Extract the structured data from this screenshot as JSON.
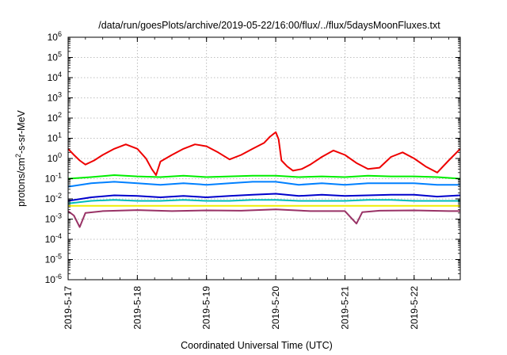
{
  "chart_data": {
    "type": "line",
    "title": "/data/run/goesPlots/archive/2019-05-22/16:00/flux/../flux/5daysMoonFluxes.txt",
    "xlabel": "Coordinated Universal Time (UTC)",
    "ylabel": {
      "base": "protons/cm",
      "sup": "2",
      "rest": "-s-sr-MeV"
    },
    "y_scale": "log",
    "ylim": [
      1e-06,
      1000000.0
    ],
    "xlim": [
      "2019-05-17T00:00",
      "2019-05-22T16:00"
    ],
    "grid": true,
    "y_ticks": [
      {
        "value": 1000000.0,
        "mant": "10",
        "exp": "6"
      },
      {
        "value": 100000.0,
        "mant": "10",
        "exp": "5"
      },
      {
        "value": 10000.0,
        "mant": "10",
        "exp": "4"
      },
      {
        "value": 1000.0,
        "mant": "10",
        "exp": "3"
      },
      {
        "value": 100.0,
        "mant": "10",
        "exp": "2"
      },
      {
        "value": 10.0,
        "mant": "10",
        "exp": "1"
      },
      {
        "value": 1.0,
        "mant": "10",
        "exp": "0"
      },
      {
        "value": 0.1,
        "mant": "10",
        "exp": "-1"
      },
      {
        "value": 0.01,
        "mant": "10",
        "exp": "-2"
      },
      {
        "value": 0.001,
        "mant": "10",
        "exp": "-3"
      },
      {
        "value": 0.0001,
        "mant": "10",
        "exp": "-4"
      },
      {
        "value": 1e-05,
        "mant": "10",
        "exp": "-5"
      },
      {
        "value": 1e-06,
        "mant": "10",
        "exp": "-6"
      }
    ],
    "x_ticks": [
      {
        "value": "2019-05-17T00:00",
        "label": "2019-5-17"
      },
      {
        "value": "2019-05-18T00:00",
        "label": "2019-5-18"
      },
      {
        "value": "2019-05-19T00:00",
        "label": "2019-5-19"
      },
      {
        "value": "2019-05-20T00:00",
        "label": "2019-5-20"
      },
      {
        "value": "2019-05-21T00:00",
        "label": "2019-5-21"
      },
      {
        "value": "2019-05-22T00:00",
        "label": "2019-5-22"
      }
    ],
    "series": [
      {
        "color": "#ee0000",
        "x": [
          "2019-05-17T00:00",
          "2019-05-17T02:00",
          "2019-05-17T04:00",
          "2019-05-17T06:00",
          "2019-05-17T09:00",
          "2019-05-17T12:00",
          "2019-05-17T16:00",
          "2019-05-17T20:00",
          "2019-05-18T00:00",
          "2019-05-18T03:00",
          "2019-05-18T05:00",
          "2019-05-18T06:30",
          "2019-05-18T08:00",
          "2019-05-18T12:00",
          "2019-05-18T16:00",
          "2019-05-18T20:00",
          "2019-05-19T00:00",
          "2019-05-19T04:00",
          "2019-05-19T08:00",
          "2019-05-19T12:00",
          "2019-05-19T16:00",
          "2019-05-19T20:00",
          "2019-05-19T22:00",
          "2019-05-20T00:00",
          "2019-05-20T01:00",
          "2019-05-20T02:00",
          "2019-05-20T04:00",
          "2019-05-20T06:00",
          "2019-05-20T09:00",
          "2019-05-20T12:00",
          "2019-05-20T16:00",
          "2019-05-20T20:00",
          "2019-05-21T00:00",
          "2019-05-21T04:00",
          "2019-05-21T08:00",
          "2019-05-21T12:00",
          "2019-05-21T16:00",
          "2019-05-21T20:00",
          "2019-05-22T00:00",
          "2019-05-22T04:00",
          "2019-05-22T08:00",
          "2019-05-22T12:00",
          "2019-05-22T16:00"
        ],
        "y": [
          3,
          1.5,
          0.8,
          0.5,
          0.8,
          1.5,
          3,
          5,
          3,
          1,
          0.3,
          0.15,
          0.7,
          1.5,
          3,
          5,
          4,
          2,
          0.9,
          1.5,
          3,
          6,
          12,
          20,
          9,
          0.8,
          0.4,
          0.25,
          0.3,
          0.5,
          1.2,
          2.5,
          1.5,
          0.6,
          0.3,
          0.35,
          1.2,
          2,
          1,
          0.4,
          0.2,
          0.8,
          3
        ]
      },
      {
        "color": "#00ee00",
        "x": [
          "2019-05-17T00:00",
          "2019-05-17T08:00",
          "2019-05-17T16:00",
          "2019-05-18T00:00",
          "2019-05-18T08:00",
          "2019-05-18T16:00",
          "2019-05-19T00:00",
          "2019-05-19T08:00",
          "2019-05-19T16:00",
          "2019-05-20T00:00",
          "2019-05-20T08:00",
          "2019-05-20T16:00",
          "2019-05-21T00:00",
          "2019-05-21T08:00",
          "2019-05-21T16:00",
          "2019-05-22T00:00",
          "2019-05-22T08:00",
          "2019-05-22T16:00"
        ],
        "y": [
          0.1,
          0.12,
          0.15,
          0.13,
          0.12,
          0.14,
          0.12,
          0.13,
          0.14,
          0.14,
          0.12,
          0.13,
          0.12,
          0.14,
          0.13,
          0.13,
          0.12,
          0.1
        ]
      },
      {
        "color": "#0080ff",
        "x": [
          "2019-05-17T00:00",
          "2019-05-17T08:00",
          "2019-05-17T16:00",
          "2019-05-18T00:00",
          "2019-05-18T08:00",
          "2019-05-18T16:00",
          "2019-05-19T00:00",
          "2019-05-19T08:00",
          "2019-05-19T16:00",
          "2019-05-20T00:00",
          "2019-05-20T08:00",
          "2019-05-20T16:00",
          "2019-05-21T00:00",
          "2019-05-21T08:00",
          "2019-05-21T16:00",
          "2019-05-22T00:00",
          "2019-05-22T08:00",
          "2019-05-22T16:00"
        ],
        "y": [
          0.04,
          0.06,
          0.07,
          0.06,
          0.05,
          0.06,
          0.05,
          0.06,
          0.07,
          0.07,
          0.05,
          0.06,
          0.05,
          0.06,
          0.06,
          0.06,
          0.05,
          0.05
        ]
      },
      {
        "color": "#0000cc",
        "x": [
          "2019-05-17T00:00",
          "2019-05-17T08:00",
          "2019-05-17T16:00",
          "2019-05-18T00:00",
          "2019-05-18T08:00",
          "2019-05-18T16:00",
          "2019-05-19T00:00",
          "2019-05-19T08:00",
          "2019-05-19T16:00",
          "2019-05-20T00:00",
          "2019-05-20T08:00",
          "2019-05-20T16:00",
          "2019-05-21T00:00",
          "2019-05-21T08:00",
          "2019-05-21T16:00",
          "2019-05-22T00:00",
          "2019-05-22T08:00",
          "2019-05-22T16:00"
        ],
        "y": [
          0.008,
          0.012,
          0.015,
          0.014,
          0.012,
          0.014,
          0.012,
          0.014,
          0.016,
          0.018,
          0.014,
          0.016,
          0.014,
          0.015,
          0.016,
          0.016,
          0.013,
          0.015
        ]
      },
      {
        "color": "#00bbbb",
        "x": [
          "2019-05-17T00:00",
          "2019-05-17T08:00",
          "2019-05-17T16:00",
          "2019-05-18T00:00",
          "2019-05-18T08:00",
          "2019-05-18T16:00",
          "2019-05-19T00:00",
          "2019-05-19T08:00",
          "2019-05-19T16:00",
          "2019-05-20T00:00",
          "2019-05-20T08:00",
          "2019-05-20T16:00",
          "2019-05-21T00:00",
          "2019-05-21T08:00",
          "2019-05-21T16:00",
          "2019-05-22T00:00",
          "2019-05-22T08:00",
          "2019-05-22T16:00"
        ],
        "y": [
          0.006,
          0.008,
          0.009,
          0.008,
          0.008,
          0.009,
          0.008,
          0.008,
          0.009,
          0.009,
          0.008,
          0.008,
          0.008,
          0.009,
          0.009,
          0.008,
          0.008,
          0.008
        ]
      },
      {
        "color": "#eeee00",
        "x": [
          "2019-05-17T00:00",
          "2019-05-17T08:00",
          "2019-05-17T16:00",
          "2019-05-18T00:00",
          "2019-05-18T08:00",
          "2019-05-18T16:00",
          "2019-05-19T00:00",
          "2019-05-19T08:00",
          "2019-05-19T16:00",
          "2019-05-20T00:00",
          "2019-05-20T08:00",
          "2019-05-20T16:00",
          "2019-05-21T00:00",
          "2019-05-21T08:00",
          "2019-05-21T16:00",
          "2019-05-22T00:00",
          "2019-05-22T08:00",
          "2019-05-22T16:00"
        ],
        "y": [
          0.0045,
          0.0045,
          0.0045,
          0.0045,
          0.0045,
          0.0045,
          0.0045,
          0.0045,
          0.0045,
          0.0045,
          0.0045,
          0.0045,
          0.0045,
          0.0045,
          0.0045,
          0.0045,
          0.0045,
          0.0045
        ]
      },
      {
        "color": "#993366",
        "x": [
          "2019-05-17T00:00",
          "2019-05-17T02:00",
          "2019-05-17T04:00",
          "2019-05-17T06:00",
          "2019-05-17T12:00",
          "2019-05-18T00:00",
          "2019-05-18T12:00",
          "2019-05-19T00:00",
          "2019-05-19T12:00",
          "2019-05-20T00:00",
          "2019-05-20T12:00",
          "2019-05-21T00:00",
          "2019-05-21T04:00",
          "2019-05-21T06:00",
          "2019-05-21T12:00",
          "2019-05-22T00:00",
          "2019-05-22T12:00",
          "2019-05-22T16:00"
        ],
        "y": [
          0.0025,
          0.0015,
          0.0004,
          0.002,
          0.0025,
          0.0028,
          0.0025,
          0.0027,
          0.0026,
          0.003,
          0.0025,
          0.0025,
          0.0006,
          0.0022,
          0.0026,
          0.0027,
          0.0025,
          0.0025
        ]
      }
    ]
  }
}
